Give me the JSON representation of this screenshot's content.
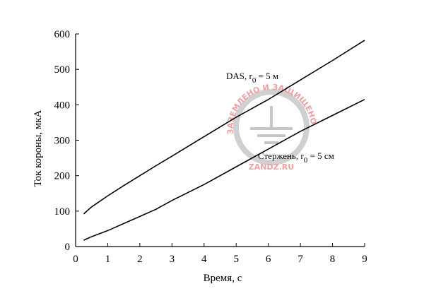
{
  "chart_data": {
    "type": "line",
    "x_label": "Время,  с",
    "y_label": "Ток короны,  мкА",
    "x": [
      0.25,
      0.5,
      1,
      1.5,
      2,
      2.5,
      3,
      4,
      5,
      6,
      7,
      8,
      9
    ],
    "series": [
      {
        "color": "#000000",
        "values": [
          92,
          112,
          143,
          172,
          200,
          228,
          255,
          310,
          365,
          415,
          470,
          525,
          582
        ]
      },
      {
        "color": "#000000",
        "values": [
          18,
          28,
          45,
          65,
          85,
          105,
          130,
          175,
          225,
          275,
          325,
          370,
          415
        ]
      }
    ],
    "annotations": [
      {
        "text": "DAS,  r",
        "sub": "0",
        "after": " = 5 м"
      },
      {
        "text": "Стержень,  r",
        "sub": "0",
        "after": " = 5 см"
      }
    ],
    "xlim": [
      0,
      9
    ],
    "xticks": [
      0,
      1,
      2,
      3,
      4,
      5,
      6,
      7,
      8,
      9
    ],
    "ylim": [
      0,
      600
    ],
    "yticks": [
      0,
      100,
      200,
      300,
      400,
      500,
      600
    ],
    "grid": false
  },
  "watermark": {
    "ring_text": "ЗАЗЕМЛЕНО И ЗАЩИЩЕНО",
    "site": "ZANDZ.RU"
  }
}
